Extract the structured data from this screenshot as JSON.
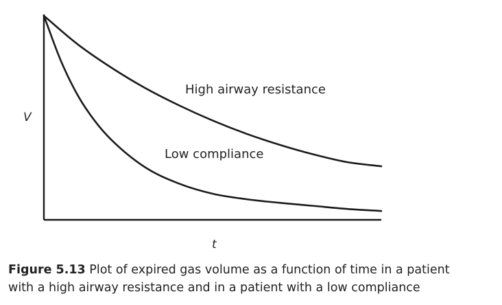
{
  "chart_data": {
    "type": "line",
    "xlabel": "t",
    "ylabel": "V",
    "xlim": [
      0,
      1
    ],
    "ylim": [
      0,
      1
    ],
    "ticks": "none",
    "grid": false,
    "legend": "none",
    "series": [
      {
        "name": "High airway resistance",
        "x": [
          0,
          0.1,
          0.2,
          0.3,
          0.4,
          0.5,
          0.6,
          0.7,
          0.8,
          0.9,
          1.0
        ],
        "y": [
          1.0,
          0.86,
          0.745,
          0.645,
          0.56,
          0.485,
          0.42,
          0.365,
          0.318,
          0.28,
          0.26
        ]
      },
      {
        "name": "Low compliance",
        "x": [
          0,
          0.05,
          0.1,
          0.15,
          0.2,
          0.3,
          0.4,
          0.5,
          0.6,
          0.7,
          0.8,
          0.9,
          1.0
        ],
        "y": [
          1.0,
          0.78,
          0.61,
          0.485,
          0.39,
          0.255,
          0.175,
          0.125,
          0.098,
          0.08,
          0.065,
          0.05,
          0.04
        ]
      }
    ],
    "annotations": [
      "High airway resistance",
      "Low compliance"
    ]
  },
  "caption": {
    "figure_number": "Figure 5.13",
    "line1": "Plot of expired gas volume as a function of time in a patient",
    "line2": "with a high  airway resistance and in a patient with a low compliance"
  },
  "colors": {
    "ink": "#1a1a1a",
    "background": "#ffffff"
  }
}
